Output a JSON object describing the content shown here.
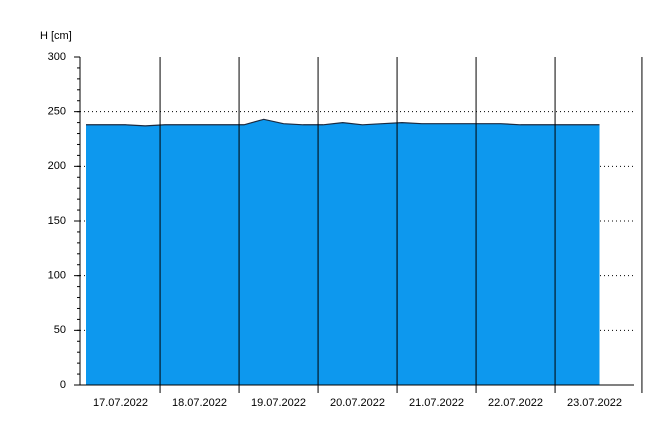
{
  "chart_data": {
    "type": "area",
    "y_label": "H [cm]",
    "categories": [
      null,
      null,
      "17.07.2022",
      null,
      null,
      null,
      "18.07.2022",
      null,
      null,
      null,
      "19.07.2022",
      null,
      null,
      null,
      "20.07.2022",
      null,
      null,
      null,
      "21.07.2022",
      null,
      null,
      null,
      "22.07.2022",
      null,
      null,
      null,
      "23.07.2022"
    ],
    "values": [
      238,
      238,
      238,
      237,
      238,
      238,
      238,
      238,
      238,
      243,
      239,
      238,
      238,
      240,
      238,
      239,
      240,
      239,
      239,
      239,
      239,
      239,
      238,
      238,
      238,
      238,
      238
    ],
    "color": "#0d98ee",
    "line_color": "#1a2a40",
    "ylim": [
      0,
      300
    ],
    "yticks": [
      0,
      50,
      100,
      150,
      200,
      250,
      300
    ],
    "grid": true
  }
}
